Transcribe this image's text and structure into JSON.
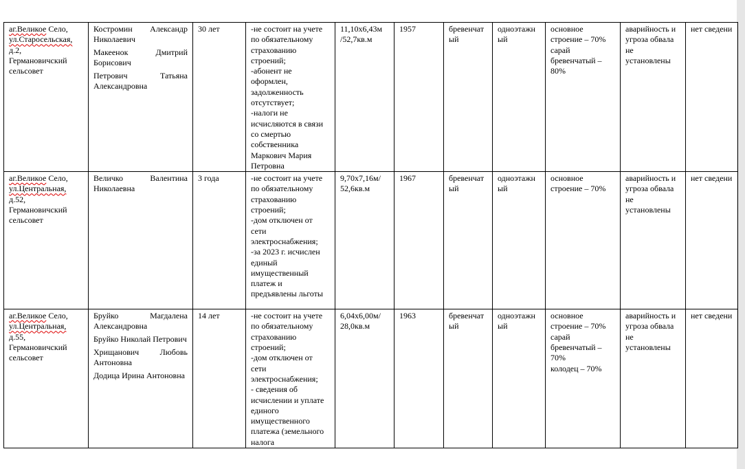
{
  "rows": [
    {
      "address": {
        "street_a": "аг.Великое",
        "street_b": " Село,",
        "street2": "ул.Старосельская,",
        "house": "д.2,",
        "council": "Германовичский сельсовет"
      },
      "persons": [
        "Костромин Александр Николаевич",
        "Макеенок Дмитрий Борисович",
        "Петрович Татьяна Александровна"
      ],
      "period": "30 лет",
      "notes": "-не состоит на учете по обязательному страхованию строений;\n-абонент не оформлен, задолженность отсутствует;\n-налоги не исчисляются в связи со смертью собственника Маркович Мария Петровна",
      "size": "11,10х6,43м /52,7кв.м",
      "year": "1957",
      "material": "бревенчатый",
      "floors": "одноэтажный",
      "wear": "основное строение – 70%\nсарай бревенчатый – 80%",
      "danger": "аварийность и угроза обвала не установлены",
      "info": "нет сведени"
    },
    {
      "address": {
        "street_a": "аг.Великое",
        "street_b": " Село,",
        "street2": "ул.Центральная,",
        "house": "д.52,",
        "council": "Германовичский сельсовет"
      },
      "persons": [
        "Величко Валентина Николаевна"
      ],
      "period": "3 года",
      "notes": "-не состоит на учете по обязательному страхованию строений;\n-дом отключен от сети электроснабжения;\n-за 2023 г. исчислен единый имущественный платеж и предъявлены льготы",
      "size": "9,70х7,16м/ 52,6кв.м",
      "year": "1967",
      "material": "бревенчатый",
      "floors": "одноэтажный",
      "wear": "основное строение – 70%",
      "danger": "аварийность и угроза обвала не установлены",
      "info": "нет сведени"
    },
    {
      "address": {
        "street_a": "аг.Великое",
        "street_b": " Село,",
        "street2": "ул.Центральная,",
        "house": "д.55,",
        "council": "Германовичский сельсовет"
      },
      "persons": [
        "Бруйко Магдалена Александровна",
        "Бруйко Николай Петрович",
        "Хрищанович Любовь Антоновна",
        "Додица Ирина Антоновна"
      ],
      "period": "14 лет",
      "notes": "-не состоит на учете по обязательному страхованию строений;\n-дом отключен от сети электроснабжения;\n- сведения об исчислении и уплате единого имущественного платежа (земельного налога",
      "size": "6,04х6,00м/ 28,0кв.м",
      "year": "1963",
      "material": "бревенчатый",
      "floors": "одноэтажный",
      "wear": "основное строение – 70%\nсарай бревенчатый – 70%\nколодец – 70%",
      "danger": "аварийность и угроза обвала не установлены",
      "info": "нет сведени"
    }
  ]
}
